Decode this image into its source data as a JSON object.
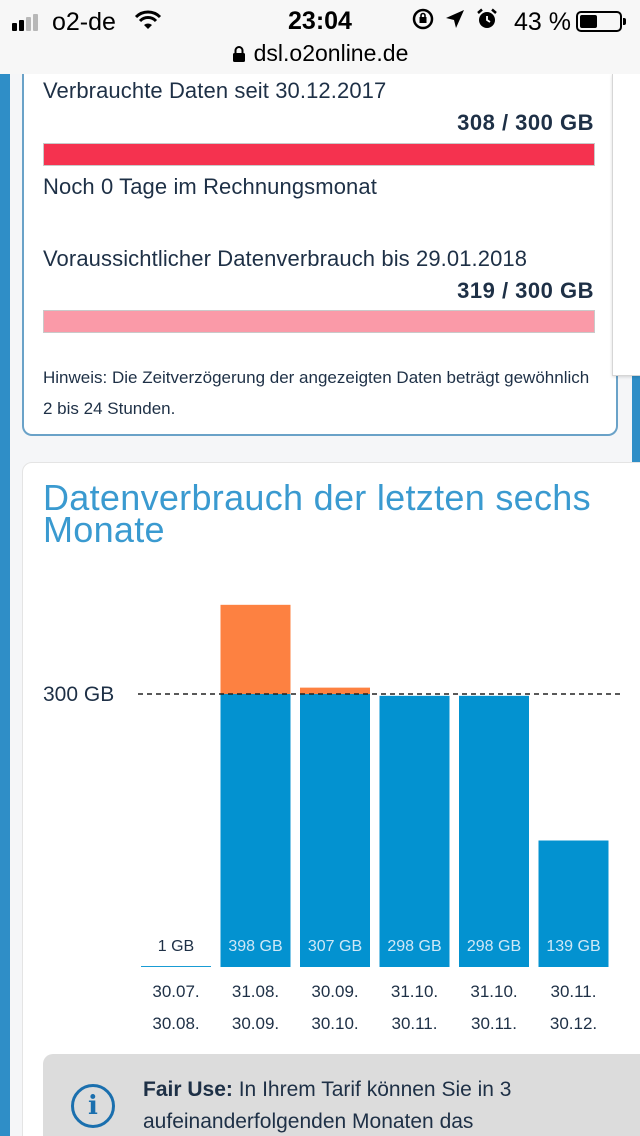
{
  "status_bar": {
    "carrier": "o2-de",
    "time": "23:04",
    "battery_percent": "43 %",
    "battery_level": 0.43,
    "icons": [
      "signal-icon",
      "wifi-icon",
      "rotation-lock-icon",
      "location-icon",
      "alarm-icon",
      "battery-icon"
    ]
  },
  "url_bar": {
    "url": "dsl.o2online.de"
  },
  "usage": {
    "used_label": "Verbrauchte Daten seit 30.12.2017",
    "used_value": "308 / 300 GB",
    "used_ratio": 1.0,
    "used_color": "#f5324f",
    "days_text": "Noch 0 Tage im Rechnungsmonat",
    "forecast_label": "Voraussichtlicher Datenverbrauch bis 29.01.2018",
    "forecast_value": "319 / 300 GB",
    "forecast_ratio": 1.0,
    "forecast_color": "#fa9aa8",
    "hint": "Hinweis: Die Zeitverzögerung der angezeigten Daten beträgt gewöhnlich 2 bis 24 Stunden."
  },
  "chart_title": "Datenverbrauch der letzten sechs Monate",
  "chart_data": {
    "type": "bar",
    "stacked": true,
    "limit_label": "300 GB",
    "limit_value": 300,
    "categories": [
      [
        "30.07.",
        "30.08."
      ],
      [
        "31.08.",
        "30.09."
      ],
      [
        "30.09.",
        "30.10."
      ],
      [
        "31.10.",
        "30.11."
      ],
      [
        "31.10.",
        "30.11."
      ],
      [
        "30.11.",
        "30.12."
      ]
    ],
    "values": [
      1,
      398,
      307,
      298,
      298,
      139
    ],
    "value_labels": [
      "1 GB",
      "398 GB",
      "307 GB",
      "298 GB",
      "298 GB",
      "139 GB"
    ],
    "series": [
      {
        "values": [
          1,
          300,
          300,
          298,
          298,
          139
        ],
        "color": "#0392d0"
      },
      {
        "values": [
          0,
          98,
          7,
          0,
          0,
          0
        ],
        "color": "#fd8141"
      }
    ],
    "ylim": [
      0,
      400
    ]
  },
  "fair_use": {
    "icon": "info-icon",
    "title": "Fair Use:",
    "text": "In Ihrem Tarif können Sie in 3 aufeinanderfolgenden Monaten das"
  }
}
